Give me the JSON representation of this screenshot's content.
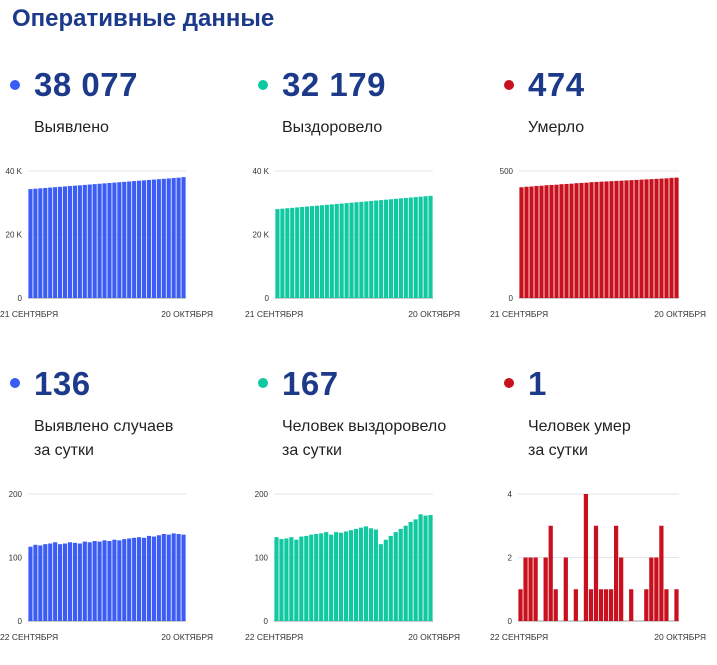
{
  "page": {
    "title": "Оперативные данные"
  },
  "colors": {
    "blue": "#3b5cf5",
    "green": "#10c9a0",
    "red": "#c8101e",
    "title": "#1d3a8a"
  },
  "stats": [
    {
      "value": "38 077",
      "label": [
        "Выявлено"
      ],
      "color": "#3b5cf5"
    },
    {
      "value": "32 179",
      "label": [
        "Выздоровело"
      ],
      "color": "#10c9a0"
    },
    {
      "value": "474",
      "label": [
        "Умерло"
      ],
      "color": "#c8101e"
    },
    {
      "value": "136",
      "label": [
        "Выявлено случаев",
        "за сутки"
      ],
      "color": "#3b5cf5"
    },
    {
      "value": "167",
      "label": [
        "Человек выздоровело",
        "за сутки"
      ],
      "color": "#10c9a0"
    },
    {
      "value": "1",
      "label": [
        "Человек умер",
        "за сутки"
      ],
      "color": "#c8101e"
    }
  ],
  "chart_data": [
    {
      "type": "bar",
      "color": "#3b5cf5",
      "x_tick_labels": [
        "21 СЕНТЯБРЯ",
        "20 ОКТЯБРЯ"
      ],
      "y_tick_labels": [
        "0",
        "20 K",
        "40 K"
      ],
      "y_ticks": [
        0,
        20000,
        40000
      ],
      "ylim": [
        0,
        40000
      ],
      "values": [
        34300,
        34420,
        34540,
        34660,
        34780,
        34900,
        35020,
        35140,
        35260,
        35380,
        35500,
        35620,
        35740,
        35860,
        35980,
        36100,
        36220,
        36340,
        36460,
        36580,
        36700,
        36820,
        36940,
        37060,
        37180,
        37300,
        37420,
        37540,
        37660,
        37780,
        37900,
        38077
      ]
    },
    {
      "type": "bar",
      "color": "#10c9a0",
      "x_tick_labels": [
        "21 СЕНТЯБРЯ",
        "20 ОКТЯБРЯ"
      ],
      "y_tick_labels": [
        "0",
        "20 K",
        "40 K"
      ],
      "y_ticks": [
        0,
        20000,
        40000
      ],
      "ylim": [
        0,
        40000
      ],
      "values": [
        28000,
        28135,
        28270,
        28405,
        28540,
        28675,
        28810,
        28945,
        29080,
        29215,
        29350,
        29485,
        29620,
        29755,
        29890,
        30025,
        30160,
        30295,
        30430,
        30565,
        30700,
        30835,
        30970,
        31105,
        31240,
        31375,
        31510,
        31645,
        31780,
        31915,
        32050,
        32179
      ]
    },
    {
      "type": "bar",
      "color": "#c8101e",
      "x_tick_labels": [
        "21 СЕНТЯБРЯ",
        "20 ОКТЯБРЯ"
      ],
      "y_tick_labels": [
        "0",
        "500"
      ],
      "y_ticks": [
        0,
        500
      ],
      "ylim": [
        0,
        500
      ],
      "values": [
        436,
        438,
        439,
        441,
        442,
        444,
        445,
        446,
        448,
        449,
        450,
        452,
        453,
        454,
        456,
        457,
        458,
        459,
        460,
        461,
        462,
        463,
        464,
        465,
        466,
        467,
        468,
        469,
        470,
        471,
        473,
        474
      ]
    },
    {
      "type": "bar",
      "color": "#3b5cf5",
      "x_tick_labels": [
        "22 СЕНТЯБРЯ",
        "20 ОКТЯБРЯ"
      ],
      "y_tick_labels": [
        "0",
        "100",
        "200"
      ],
      "y_ticks": [
        0,
        100,
        200
      ],
      "ylim": [
        0,
        200
      ],
      "values": [
        117,
        120,
        119,
        121,
        122,
        124,
        121,
        122,
        124,
        123,
        122,
        125,
        124,
        126,
        125,
        127,
        126,
        128,
        127,
        129,
        130,
        131,
        132,
        131,
        134,
        133,
        135,
        137,
        136,
        138,
        137,
        136
      ]
    },
    {
      "type": "bar",
      "color": "#10c9a0",
      "x_tick_labels": [
        "22 СЕНТЯБРЯ",
        "20 ОКТЯБРЯ"
      ],
      "y_tick_labels": [
        "0",
        "100",
        "200"
      ],
      "y_ticks": [
        0,
        100,
        200
      ],
      "ylim": [
        0,
        200
      ],
      "values": [
        132,
        129,
        130,
        132,
        128,
        133,
        134,
        136,
        137,
        138,
        140,
        136,
        140,
        139,
        141,
        143,
        145,
        147,
        149,
        146,
        144,
        121,
        128,
        134,
        140,
        145,
        150,
        156,
        160,
        168,
        166,
        167
      ]
    },
    {
      "type": "bar",
      "color": "#c8101e",
      "x_tick_labels": [
        "22 СЕНТЯБРЯ",
        "20 ОКТЯБРЯ"
      ],
      "y_tick_labels": [
        "0",
        "2",
        "4"
      ],
      "y_ticks": [
        0,
        2,
        4
      ],
      "ylim": [
        0,
        4
      ],
      "values": [
        1,
        2,
        2,
        2,
        0,
        2,
        3,
        1,
        0,
        2,
        0,
        1,
        0,
        4,
        1,
        3,
        1,
        1,
        1,
        3,
        2,
        0,
        1,
        0,
        0,
        1,
        2,
        2,
        3,
        1,
        0,
        1
      ]
    }
  ]
}
